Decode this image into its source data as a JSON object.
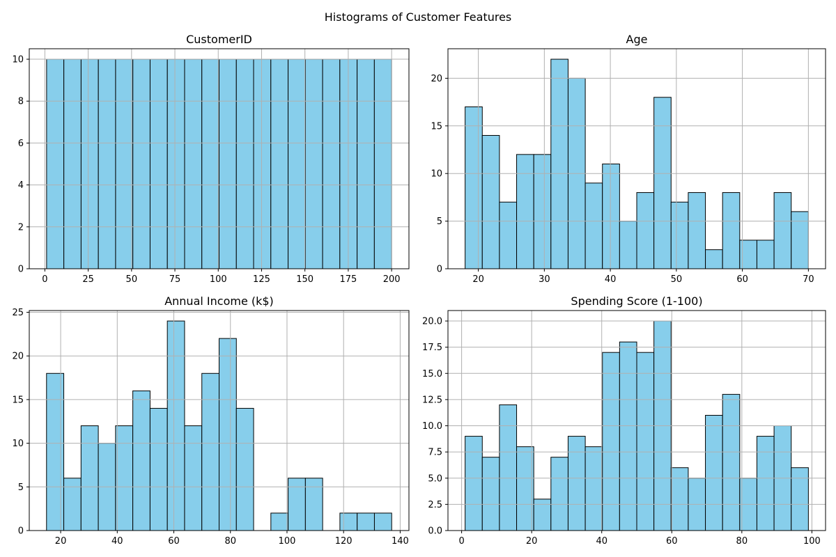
{
  "figure_title": "Histograms of Customer Features",
  "bar_color": "#87ceeb",
  "edge_color": "#000000",
  "chart_data": [
    {
      "type": "bar",
      "title": "CustomerID",
      "bins": {
        "start": 1,
        "width": 9.95,
        "count": 20
      },
      "values": [
        10,
        10,
        10,
        10,
        10,
        10,
        10,
        10,
        10,
        10,
        10,
        10,
        10,
        10,
        10,
        10,
        10,
        10,
        10,
        10
      ],
      "xlim": [
        -9,
        210
      ],
      "ylim": [
        0,
        10.5
      ],
      "xticks": [
        0,
        25,
        50,
        75,
        100,
        125,
        150,
        175,
        200
      ],
      "yticks": [
        0,
        2,
        4,
        6,
        8,
        10
      ],
      "grid": true
    },
    {
      "type": "bar",
      "title": "Age",
      "bins": {
        "start": 18,
        "width": 2.6,
        "count": 20
      },
      "values": [
        17,
        14,
        7,
        12,
        12,
        22,
        20,
        9,
        11,
        5,
        8,
        18,
        7,
        8,
        2,
        8,
        3,
        3,
        8,
        6
      ],
      "xlim": [
        15.4,
        72.6
      ],
      "ylim": [
        0,
        23.1
      ],
      "xticks": [
        20,
        30,
        40,
        50,
        60,
        70
      ],
      "yticks": [
        0,
        5,
        10,
        15,
        20
      ],
      "grid": true
    },
    {
      "type": "bar",
      "title": "Annual Income (k$)",
      "bins": {
        "start": 15,
        "width": 6.1,
        "count": 20
      },
      "values": [
        18,
        6,
        12,
        10,
        12,
        16,
        14,
        24,
        12,
        18,
        22,
        14,
        0,
        2,
        6,
        6,
        0,
        2,
        2,
        2
      ],
      "xlim": [
        8.9,
        143.1
      ],
      "ylim": [
        0,
        25.2
      ],
      "xticks": [
        20,
        40,
        60,
        80,
        100,
        120,
        140
      ],
      "yticks": [
        0,
        5,
        10,
        15,
        20,
        25
      ],
      "grid": true
    },
    {
      "type": "bar",
      "title": "Spending Score (1-100)",
      "bins": {
        "start": 1,
        "width": 4.9,
        "count": 20
      },
      "values": [
        9,
        7,
        12,
        8,
        3,
        7,
        9,
        8,
        17,
        18,
        17,
        20,
        6,
        5,
        11,
        13,
        5,
        9,
        10,
        6
      ],
      "xlim": [
        -3.9,
        103.9
      ],
      "ylim": [
        0,
        21
      ],
      "xticks": [
        0,
        20,
        40,
        60,
        80,
        100
      ],
      "yticks": [
        "0.0",
        "2.5",
        "5.0",
        "7.5",
        "10.0",
        "12.5",
        "15.0",
        "17.5",
        "20.0"
      ],
      "grid": true
    }
  ]
}
